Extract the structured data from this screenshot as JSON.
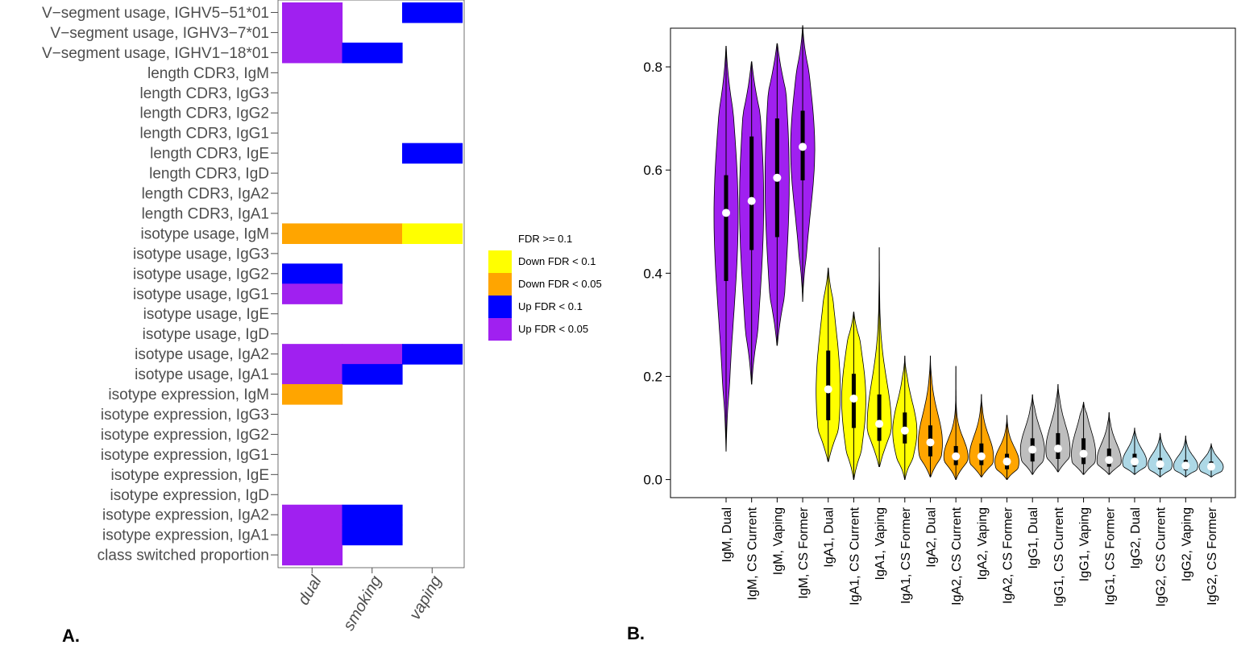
{
  "colors": {
    "up_05": "#a020f0",
    "up_1": "#0000ff",
    "down_05": "#ffa500",
    "down_1": "#ffff00",
    "igm": "#a020f0",
    "iga1": "#ffff00",
    "iga2": "#ffa500",
    "igg1": "#bebebe",
    "igg2": "#add8e6"
  },
  "panels": {
    "a": "A.",
    "b": "B."
  },
  "chart_data": [
    {
      "type": "heatmap",
      "columns": [
        "dual",
        "smoking",
        "vaping"
      ],
      "rows": [
        "V−segment usage, IGHV5−51*01",
        "V−segment usage, IGHV3−7*01",
        "V−segment usage, IGHV1−18*01",
        "length CDR3, IgM",
        "length CDR3, IgG3",
        "length CDR3, IgG2",
        "length CDR3, IgG1",
        "length CDR3, IgE",
        "length CDR3, IgD",
        "length CDR3, IgA2",
        "length CDR3, IgA1",
        "isotype usage, IgM",
        "isotype usage, IgG3",
        "isotype usage, IgG2",
        "isotype usage, IgG1",
        "isotype usage, IgE",
        "isotype usage, IgD",
        "isotype usage, IgA2",
        "isotype usage, IgA1",
        "isotype expression, IgM",
        "isotype expression, IgG3",
        "isotype expression, IgG2",
        "isotype expression, IgG1",
        "isotype expression, IgE",
        "isotype expression, IgD",
        "isotype expression, IgA2",
        "isotype expression, IgA1",
        "class switched proportion"
      ],
      "cells": [
        [
          "up_05",
          "none",
          "up_1"
        ],
        [
          "up_05",
          "none",
          "none"
        ],
        [
          "up_05",
          "up_1",
          "none"
        ],
        [
          "none",
          "none",
          "none"
        ],
        [
          "none",
          "none",
          "none"
        ],
        [
          "none",
          "none",
          "none"
        ],
        [
          "none",
          "none",
          "none"
        ],
        [
          "none",
          "none",
          "up_1"
        ],
        [
          "none",
          "none",
          "none"
        ],
        [
          "none",
          "none",
          "none"
        ],
        [
          "none",
          "none",
          "none"
        ],
        [
          "down_05",
          "down_05",
          "down_1"
        ],
        [
          "none",
          "none",
          "none"
        ],
        [
          "up_1",
          "none",
          "none"
        ],
        [
          "up_05",
          "none",
          "none"
        ],
        [
          "none",
          "none",
          "none"
        ],
        [
          "none",
          "none",
          "none"
        ],
        [
          "up_05",
          "up_05",
          "up_1"
        ],
        [
          "up_05",
          "up_1",
          "none"
        ],
        [
          "down_05",
          "none",
          "none"
        ],
        [
          "none",
          "none",
          "none"
        ],
        [
          "none",
          "none",
          "none"
        ],
        [
          "none",
          "none",
          "none"
        ],
        [
          "none",
          "none",
          "none"
        ],
        [
          "none",
          "none",
          "none"
        ],
        [
          "up_05",
          "up_1",
          "none"
        ],
        [
          "up_05",
          "up_1",
          "none"
        ],
        [
          "up_05",
          "none",
          "none"
        ]
      ],
      "legend": [
        {
          "label": "FDR >= 0.1",
          "key": "none"
        },
        {
          "label": "Down FDR < 0.1",
          "key": "down_1"
        },
        {
          "label": "Down FDR < 0.05",
          "key": "down_05"
        },
        {
          "label": "Up FDR < 0.1",
          "key": "up_1"
        },
        {
          "label": "Up FDR < 0.05",
          "key": "up_05"
        }
      ]
    },
    {
      "type": "violin",
      "ylim": [
        -0.035,
        0.875
      ],
      "yticks": [
        "0.0",
        "0.2",
        "0.4",
        "0.6",
        "0.8"
      ],
      "categories": [
        "IgM, Dual",
        "IgM, CS Current",
        "IgM, Vaping",
        "IgM, CS Former",
        "IgA1, Dual",
        "IgA1, CS Current",
        "IgA1, Vaping",
        "IgA1, CS Former",
        "IgA2, Dual",
        "IgA2, CS Current",
        "IgA2, Vaping",
        "IgA2, CS Former",
        "IgG1, Dual",
        "IgG1, CS Current",
        "IgG1, Vaping",
        "IgG1, CS Former",
        "IgG2, Dual",
        "IgG2, CS Current",
        "IgG2, Vaping",
        "IgG2, CS Former"
      ],
      "groups": [
        "igm",
        "igm",
        "igm",
        "igm",
        "iga1",
        "iga1",
        "iga1",
        "iga1",
        "iga2",
        "iga2",
        "iga2",
        "iga2",
        "igg1",
        "igg1",
        "igg1",
        "igg1",
        "igg2",
        "igg2",
        "igg2",
        "igg2"
      ],
      "min": [
        0.055,
        0.185,
        0.26,
        0.345,
        0.035,
        0.0,
        0.025,
        0.0,
        0.005,
        0.0,
        0.005,
        0.0,
        0.01,
        0.015,
        0.01,
        0.01,
        0.01,
        0.005,
        0.005,
        0.005
      ],
      "max": [
        0.84,
        0.81,
        0.845,
        0.88,
        0.41,
        0.325,
        0.45,
        0.24,
        0.24,
        0.22,
        0.165,
        0.125,
        0.165,
        0.185,
        0.15,
        0.13,
        0.1,
        0.09,
        0.085,
        0.07
      ],
      "median": [
        0.517,
        0.54,
        0.585,
        0.645,
        0.175,
        0.157,
        0.108,
        0.095,
        0.072,
        0.045,
        0.045,
        0.035,
        0.058,
        0.06,
        0.05,
        0.038,
        0.035,
        0.03,
        0.027,
        0.025
      ],
      "q1": [
        0.385,
        0.445,
        0.47,
        0.58,
        0.115,
        0.1,
        0.075,
        0.07,
        0.045,
        0.028,
        0.028,
        0.02,
        0.035,
        0.04,
        0.03,
        0.025,
        0.025,
        0.02,
        0.018,
        0.018
      ],
      "q3": [
        0.59,
        0.665,
        0.7,
        0.715,
        0.25,
        0.205,
        0.165,
        0.13,
        0.105,
        0.065,
        0.07,
        0.05,
        0.08,
        0.09,
        0.08,
        0.06,
        0.05,
        0.042,
        0.038,
        0.035
      ]
    }
  ]
}
